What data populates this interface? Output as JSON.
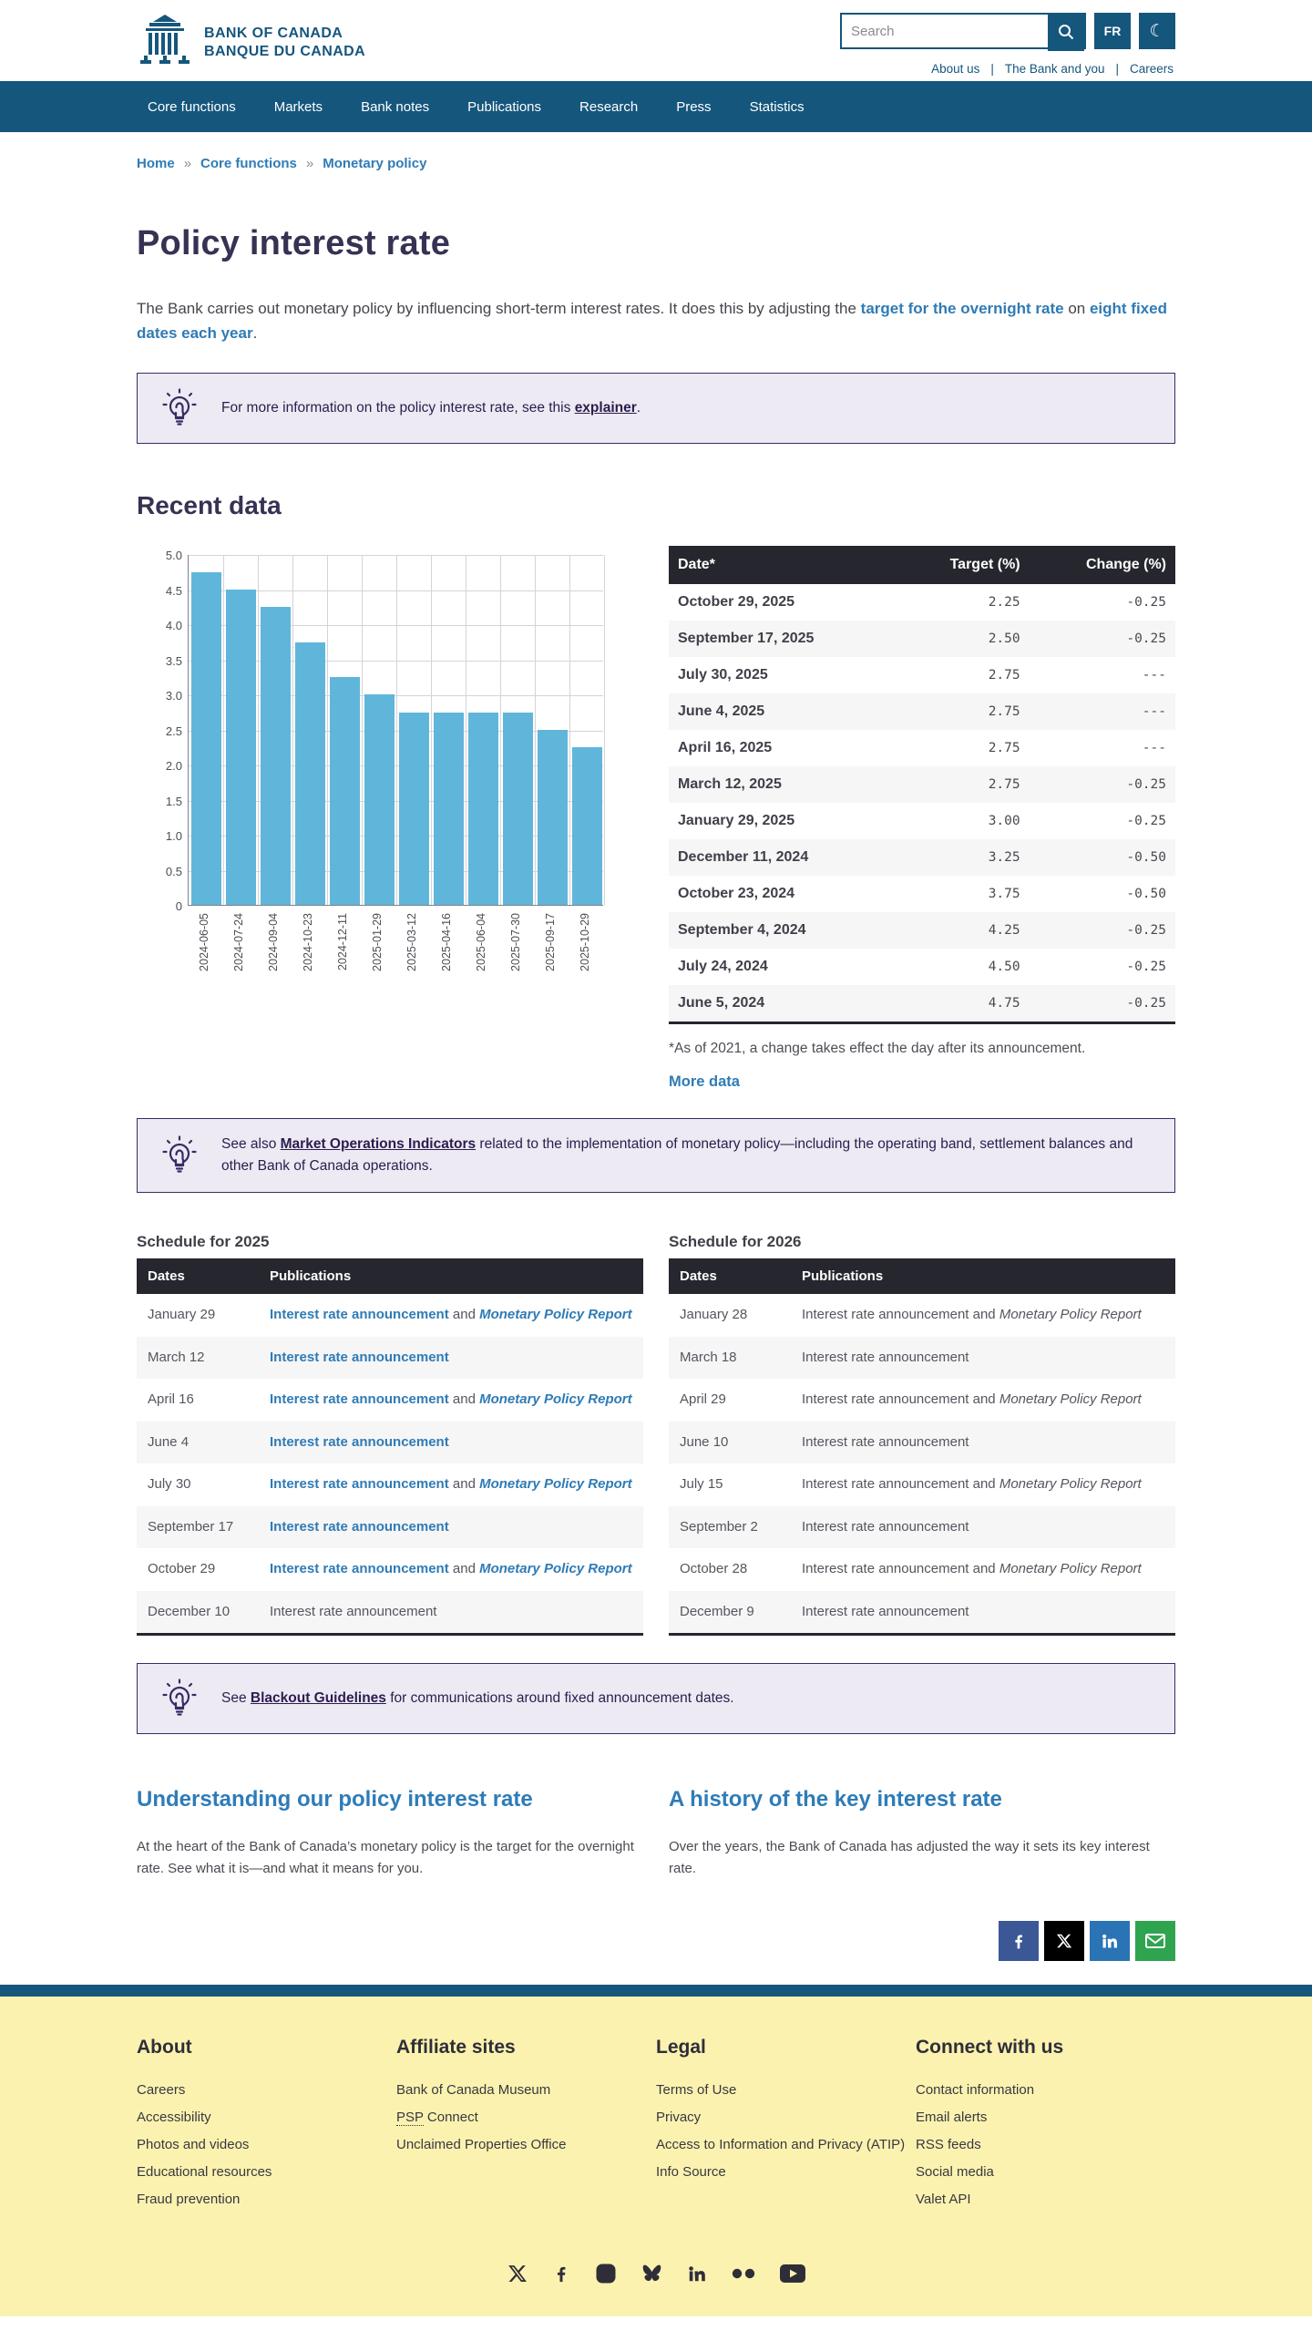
{
  "header": {
    "logo_line1": "BANK OF CANADA",
    "logo_line2": "BANQUE DU CANADA",
    "search_placeholder": "Search",
    "lang_button": "FR",
    "top_links": [
      "About us",
      "The Bank and you",
      "Careers"
    ]
  },
  "nav": {
    "items": [
      "Core functions",
      "Markets",
      "Bank notes",
      "Publications",
      "Research",
      "Press",
      "Statistics"
    ]
  },
  "breadcrumb": {
    "items": [
      "Home",
      "Core functions",
      "Monetary policy"
    ]
  },
  "page": {
    "title": "Policy interest rate",
    "intro_pre": "The Bank carries out monetary policy by influencing short-term interest rates. It does this by adjusting the ",
    "intro_link1": "target for the overnight rate",
    "intro_mid": " on ",
    "intro_link2": "eight fixed dates each year",
    "intro_post": "."
  },
  "info_boxes": [
    {
      "pre": "For more information on the policy interest rate, see this ",
      "link": "explainer",
      "post": "."
    },
    {
      "pre": "See also ",
      "link": "Market Operations Indicators",
      "post": " related to the implementation of monetary policy—including the operating band, settlement balances and other Bank of Canada operations."
    },
    {
      "pre": "See ",
      "link": "Blackout Guidelines",
      "post": " for communications around fixed announcement dates."
    }
  ],
  "recent": {
    "heading": "Recent data",
    "footnote": "*As of 2021, a change takes effect the day after its announcement.",
    "more_link": "More data"
  },
  "chart_data": {
    "type": "bar",
    "title": "",
    "xlabel": "",
    "ylabel": "",
    "categories": [
      "2024-06-05",
      "2024-07-24",
      "2024-09-04",
      "2024-10-23",
      "2024-12-11",
      "2025-01-29",
      "2025-03-12",
      "2025-04-16",
      "2025-06-04",
      "2025-07-30",
      "2025-09-17",
      "2025-10-29"
    ],
    "values": [
      4.75,
      4.5,
      4.25,
      3.75,
      3.25,
      3.0,
      2.75,
      2.75,
      2.75,
      2.75,
      2.5,
      2.25
    ],
    "ylim": [
      0,
      5
    ],
    "ytick_labels": [
      "5.0",
      "4.5",
      "4.0",
      "3.5",
      "3.0",
      "2.5",
      "2.0",
      "1.5",
      "1.0",
      "0.5",
      "0"
    ],
    "grid": true,
    "legend": false,
    "bar_color": "#60b6da"
  },
  "rate_table": {
    "headers": [
      "Date*",
      "Target (%)",
      "Change (%)"
    ],
    "rows": [
      [
        "October 29, 2025",
        "2.25",
        "-0.25"
      ],
      [
        "September 17, 2025",
        "2.50",
        "-0.25"
      ],
      [
        "July 30, 2025",
        "2.75",
        "---"
      ],
      [
        "June 4, 2025",
        "2.75",
        "---"
      ],
      [
        "April 16, 2025",
        "2.75",
        "---"
      ],
      [
        "March 12, 2025",
        "2.75",
        "-0.25"
      ],
      [
        "January 29, 2025",
        "3.00",
        "-0.25"
      ],
      [
        "December 11, 2024",
        "3.25",
        "-0.50"
      ],
      [
        "October 23, 2024",
        "3.75",
        "-0.50"
      ],
      [
        "September 4, 2024",
        "4.25",
        "-0.25"
      ],
      [
        "July 24, 2024",
        "4.50",
        "-0.25"
      ],
      [
        "June 5, 2024",
        "4.75",
        "-0.25"
      ]
    ]
  },
  "schedules": {
    "labels": {
      "ira": "Interest rate announcement",
      "and": "and",
      "mpr": "Monetary Policy Report"
    },
    "tables": [
      {
        "title": "Schedule for 2025",
        "headers": [
          "Dates",
          "Publications"
        ],
        "rows": [
          {
            "date": "January 29",
            "mpr": true,
            "linked": true
          },
          {
            "date": "March 12",
            "mpr": false,
            "linked": true
          },
          {
            "date": "April 16",
            "mpr": true,
            "linked": true
          },
          {
            "date": "June 4",
            "mpr": false,
            "linked": true
          },
          {
            "date": "July 30",
            "mpr": true,
            "linked": true
          },
          {
            "date": "September 17",
            "mpr": false,
            "linked": true
          },
          {
            "date": "October 29",
            "mpr": true,
            "linked": true
          },
          {
            "date": "December 10",
            "mpr": false,
            "linked": false
          }
        ]
      },
      {
        "title": "Schedule for 2026",
        "headers": [
          "Dates",
          "Publications"
        ],
        "rows": [
          {
            "date": "January 28",
            "mpr": true,
            "linked": false
          },
          {
            "date": "March 18",
            "mpr": false,
            "linked": false
          },
          {
            "date": "April 29",
            "mpr": true,
            "linked": false
          },
          {
            "date": "June 10",
            "mpr": false,
            "linked": false
          },
          {
            "date": "July 15",
            "mpr": true,
            "linked": false
          },
          {
            "date": "September 2",
            "mpr": false,
            "linked": false
          },
          {
            "date": "October 28",
            "mpr": true,
            "linked": false
          },
          {
            "date": "December 9",
            "mpr": false,
            "linked": false
          }
        ]
      }
    ]
  },
  "teasers": {
    "left": {
      "heading": "Understanding our policy interest rate",
      "text": "At the heart of the Bank of Canada’s monetary policy is the target for the overnight rate. See what it is—and what it means for you."
    },
    "right": {
      "heading": "A history of the key interest rate",
      "text": "Over the years, the Bank of Canada has adjusted the way it sets its key interest rate."
    }
  },
  "share": {
    "buttons": [
      {
        "name": "facebook",
        "color": "#3b5795"
      },
      {
        "name": "x",
        "color": "#000000"
      },
      {
        "name": "linkedin",
        "color": "#2a74b5"
      },
      {
        "name": "email",
        "color": "#2fa44f"
      }
    ]
  },
  "footer": {
    "columns": [
      {
        "heading": "About",
        "links": [
          "Careers",
          "Accessibility",
          "Photos and videos",
          "Educational resources",
          "Fraud prevention"
        ]
      },
      {
        "heading": "Affiliate sites",
        "links": [
          "Bank of Canada Museum",
          "PSP Connect",
          "Unclaimed Properties Office"
        ]
      },
      {
        "heading": "Legal",
        "links": [
          "Terms of Use",
          "Privacy",
          "Access to Information and Privacy (ATIP)",
          "Info Source"
        ]
      },
      {
        "heading": "Connect with us",
        "links": [
          "Contact information",
          "Email alerts",
          "RSS feeds",
          "Social media",
          "Valet API"
        ]
      }
    ],
    "social": [
      "x",
      "facebook",
      "instagram",
      "bluesky",
      "linkedin",
      "flickr",
      "youtube"
    ]
  },
  "colors": {
    "brand_teal": "#15567d",
    "link_blue": "#2f7bb5",
    "heading_navy": "#363253",
    "teaser_blue": "#2e7cb8",
    "info_purple": "#2c1c4e",
    "info_bg": "#edeaf3",
    "table_header": "#26262e",
    "bar_blue": "#60b6da",
    "footer_yellow": "#fcf2b0"
  }
}
